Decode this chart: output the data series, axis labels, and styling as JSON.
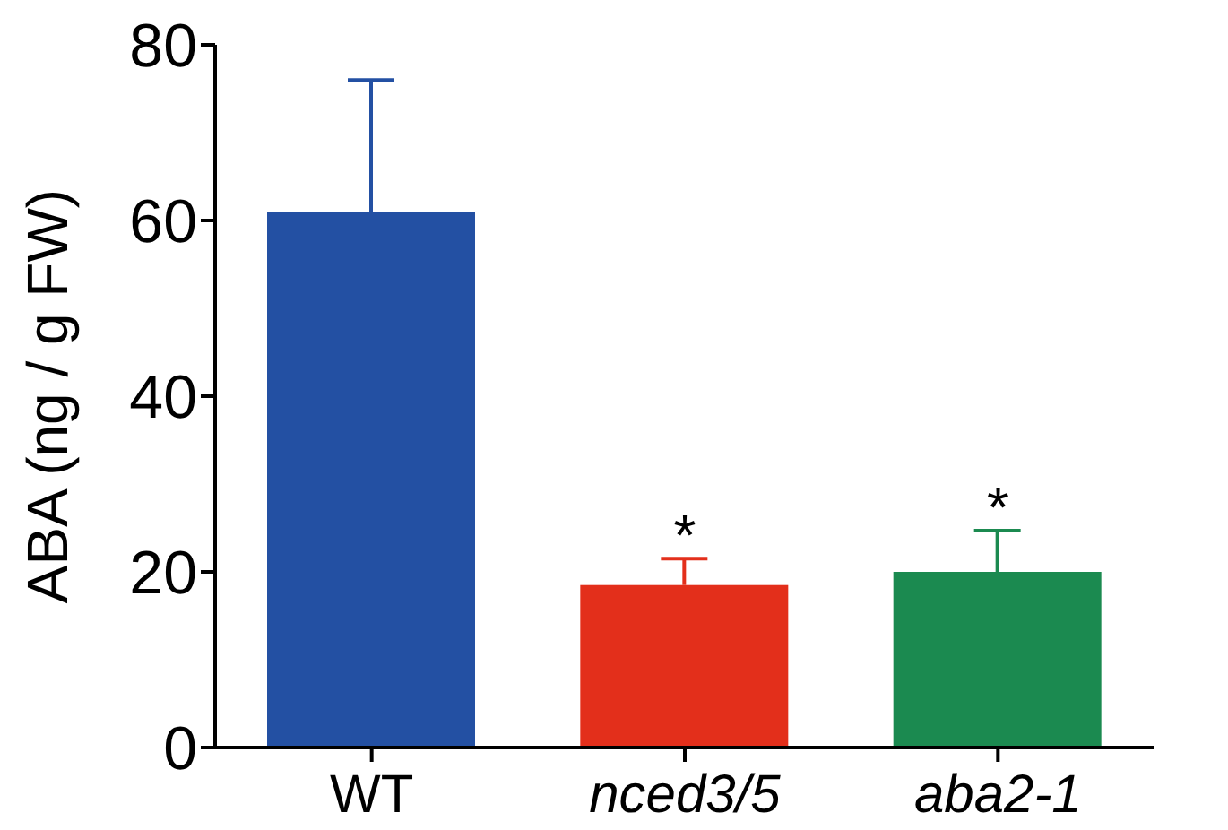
{
  "chart_data": {
    "type": "bar",
    "ylabel": "ABA (ng / g FW)",
    "categories": [
      "WT",
      "nced3/5",
      "aba2-1"
    ],
    "values": [
      61,
      18.5,
      20
    ],
    "colors": [
      "#2350a3",
      "#e32f1b",
      "#1b8a50"
    ],
    "errors": [
      [
        61,
        76
      ],
      [
        18.5,
        21.5
      ],
      [
        20,
        24.7
      ]
    ],
    "ylim": [
      0,
      80
    ],
    "yticks": [
      0,
      20,
      40,
      60,
      80
    ],
    "grid": false,
    "annotations": [
      "*",
      "*"
    ]
  }
}
